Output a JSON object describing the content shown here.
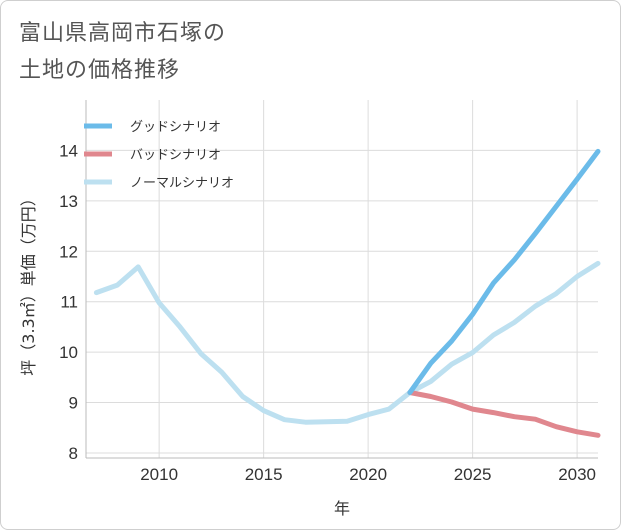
{
  "title_line1": "富山県高岡市石塚の",
  "title_line2": "土地の価格推移",
  "chart_data": {
    "type": "line",
    "xlabel": "年",
    "ylabel": "坪（3.3㎡）単価（万円）",
    "xlim": [
      2006.5,
      2031
    ],
    "ylim": [
      7.9,
      15
    ],
    "xticks": [
      2010,
      2015,
      2020,
      2025,
      2030
    ],
    "yticks": [
      8,
      9,
      10,
      11,
      12,
      13,
      14
    ],
    "grid": true,
    "legend_position": "top-left",
    "series": [
      {
        "name": "グッドシナリオ",
        "color": "#6bbbe9",
        "x": [
          2022,
          2023,
          2024,
          2025,
          2026,
          2027,
          2028,
          2029,
          2030,
          2031
        ],
        "y": [
          9.2,
          9.78,
          10.22,
          10.75,
          11.37,
          11.83,
          12.35,
          12.89,
          13.43,
          13.98
        ]
      },
      {
        "name": "バッドシナリオ",
        "color": "#e0878e",
        "x": [
          2022,
          2023,
          2024,
          2025,
          2026,
          2027,
          2028,
          2029,
          2030,
          2031
        ],
        "y": [
          9.2,
          9.12,
          9.01,
          8.87,
          8.8,
          8.72,
          8.67,
          8.52,
          8.42,
          8.35
        ]
      },
      {
        "name": "ノーマルシナリオ",
        "color": "#bde0f0",
        "x": [
          2007,
          2008,
          2009,
          2010,
          2011,
          2012,
          2013,
          2014,
          2015,
          2016,
          2017,
          2018,
          2019,
          2020,
          2021,
          2022,
          2023,
          2024,
          2025,
          2026,
          2027,
          2028,
          2029,
          2030,
          2031
        ],
        "y": [
          11.18,
          11.33,
          11.69,
          10.98,
          10.5,
          9.97,
          9.6,
          9.12,
          8.84,
          8.66,
          8.61,
          8.62,
          8.63,
          8.76,
          8.87,
          9.2,
          9.42,
          9.76,
          9.99,
          10.34,
          10.59,
          10.91,
          11.16,
          11.5,
          11.76
        ]
      }
    ]
  }
}
